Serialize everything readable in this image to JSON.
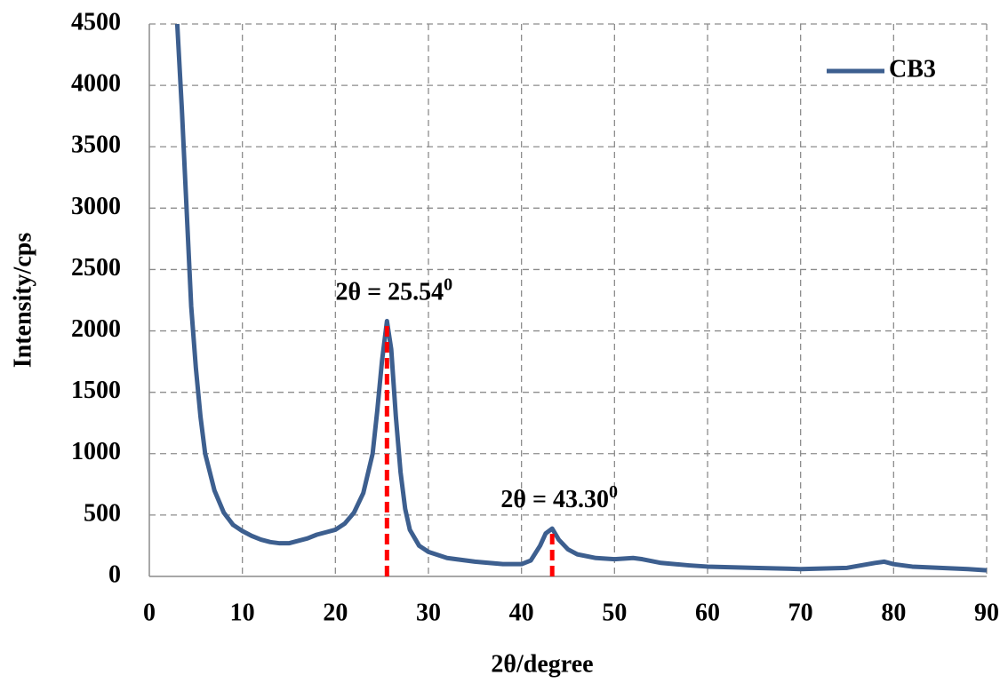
{
  "chart_data": {
    "type": "line",
    "xlabel": "2θ/degree",
    "ylabel": "Intensity/cps",
    "x": [
      3,
      3.5,
      4,
      4.5,
      5,
      5.5,
      6,
      7,
      8,
      9,
      10,
      11,
      12,
      13,
      14,
      15,
      16,
      17,
      18,
      19,
      20,
      21,
      22,
      23,
      24,
      24.5,
      25,
      25.54,
      26,
      26.5,
      27,
      27.5,
      28,
      29,
      30,
      32,
      35,
      38,
      40,
      41,
      42,
      42.6,
      43.3,
      44,
      45,
      46,
      48,
      50,
      52,
      53,
      55,
      58,
      60,
      65,
      70,
      75,
      78,
      79,
      80,
      82,
      85,
      88,
      90
    ],
    "series": [
      {
        "name": "CB3",
        "color": "#3d5f8f",
        "values": [
          4500,
          3800,
          3000,
          2200,
          1700,
          1300,
          1000,
          700,
          520,
          420,
          370,
          330,
          300,
          280,
          270,
          270,
          290,
          310,
          340,
          360,
          380,
          430,
          520,
          680,
          1000,
          1350,
          1750,
          2080,
          1850,
          1300,
          850,
          550,
          380,
          250,
          200,
          150,
          120,
          100,
          100,
          130,
          250,
          350,
          390,
          300,
          220,
          180,
          150,
          140,
          150,
          140,
          110,
          90,
          80,
          70,
          60,
          70,
          110,
          120,
          100,
          80,
          70,
          60,
          50
        ]
      }
    ],
    "annotations": [
      {
        "label": "2θ = 25.54",
        "superscript": "0",
        "x": 25.54,
        "y": 2080,
        "color": "#ff0000"
      },
      {
        "label": "2θ = 43.30",
        "superscript": "0",
        "x": 43.3,
        "y": 390,
        "color": "#ff0000"
      }
    ],
    "xlim": [
      0,
      90
    ],
    "xticks": [
      0,
      10,
      20,
      30,
      40,
      50,
      60,
      70,
      80,
      90
    ],
    "ylim": [
      0,
      4500
    ],
    "yticks": [
      0,
      500,
      1000,
      1500,
      2000,
      2500,
      3000,
      3500,
      4000,
      4500
    ],
    "grid": true,
    "legend": "upper right"
  }
}
